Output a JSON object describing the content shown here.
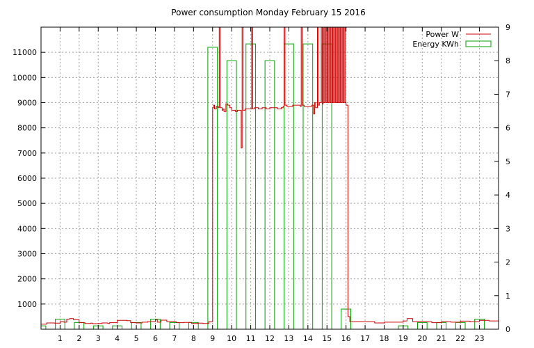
{
  "chart_data": {
    "type": "line",
    "title": "Power consumption Monday February 15 2016",
    "xlabel": "",
    "ylabel": "",
    "y2label": "",
    "xlim": [
      0,
      24
    ],
    "ylim": [
      0,
      12000
    ],
    "y2lim": [
      0,
      9
    ],
    "grid": true,
    "legend_position": "top-right",
    "x_ticks": [
      1,
      2,
      3,
      4,
      5,
      6,
      7,
      8,
      9,
      10,
      11,
      12,
      13,
      14,
      15,
      16,
      17,
      18,
      19,
      20,
      21,
      22,
      23
    ],
    "y_ticks": [
      1000,
      2000,
      3000,
      4000,
      5000,
      6000,
      7000,
      8000,
      9000,
      10000,
      11000
    ],
    "y2_ticks": [
      0,
      1,
      2,
      3,
      4,
      5,
      6,
      7,
      8,
      9
    ],
    "series": [
      {
        "name": "Power W",
        "color": "#cc0000",
        "x": [
          0,
          0.3,
          0.7,
          1.0,
          1.2,
          1.35,
          1.5,
          1.7,
          2.0,
          2.3,
          2.6,
          2.7,
          3.0,
          3.2,
          3.5,
          3.6,
          4.0,
          4.5,
          4.7,
          5.0,
          5.3,
          5.6,
          6.0,
          6.1,
          6.3,
          6.6,
          7.0,
          7.1,
          7.5,
          7.9,
          8.2,
          8.5,
          8.8,
          9.0,
          9.05,
          9.1,
          9.2,
          9.3,
          9.35,
          9.4,
          9.5,
          9.55,
          9.6,
          9.7,
          9.8,
          9.9,
          10.0,
          10.2,
          10.3,
          10.4,
          10.5,
          10.55,
          10.6,
          10.7,
          10.8,
          11.0,
          11.05,
          11.1,
          11.2,
          11.4,
          11.6,
          11.8,
          12.0,
          12.2,
          12.4,
          12.6,
          12.7,
          12.75,
          12.8,
          12.9,
          13.0,
          13.2,
          13.4,
          13.6,
          13.65,
          13.7,
          13.8,
          14.0,
          14.2,
          14.3,
          14.35,
          14.4,
          14.5,
          14.55,
          14.6,
          14.7,
          14.75,
          14.8,
          14.85,
          14.9,
          14.95,
          15.0,
          15.05,
          15.1,
          15.15,
          15.2,
          15.25,
          15.3,
          15.35,
          15.4,
          15.45,
          15.5,
          15.55,
          15.6,
          15.65,
          15.7,
          15.75,
          15.8,
          15.85,
          15.9,
          15.95,
          16.0,
          16.1,
          16.2,
          16.5,
          17.0,
          17.5,
          18.0,
          18.5,
          19.0,
          19.2,
          19.5,
          20.0,
          20.5,
          21.0,
          21.5,
          22.0,
          22.5,
          23.0,
          23.5,
          24.0
        ],
        "y": [
          200,
          250,
          240,
          300,
          280,
          400,
          420,
          380,
          260,
          230,
          240,
          220,
          230,
          250,
          230,
          260,
          350,
          340,
          260,
          250,
          280,
          300,
          380,
          280,
          360,
          300,
          290,
          260,
          270,
          230,
          240,
          230,
          300,
          8800,
          8900,
          8750,
          8850,
          8800,
          12000,
          8800,
          8700,
          8750,
          8650,
          8950,
          8900,
          8800,
          8700,
          8650,
          8700,
          8700,
          7200,
          12000,
          8700,
          8750,
          8750,
          8750,
          12000,
          8750,
          8800,
          8750,
          8800,
          8750,
          8800,
          8800,
          8750,
          8800,
          8850,
          12000,
          8900,
          8850,
          8850,
          8900,
          8900,
          8850,
          12000,
          8900,
          8850,
          8850,
          8900,
          8550,
          9000,
          8800,
          12000,
          8900,
          9000,
          12000,
          8950,
          12000,
          9000,
          12000,
          9000,
          12000,
          9000,
          12000,
          9000,
          12000,
          9000,
          12000,
          9000,
          12000,
          9000,
          12000,
          9000,
          12000,
          9000,
          12000,
          9000,
          12000,
          9000,
          12000,
          9000,
          8900,
          500,
          300,
          300,
          300,
          250,
          280,
          280,
          330,
          420,
          300,
          300,
          260,
          300,
          280,
          320,
          300,
          350,
          330,
          330
        ]
      },
      {
        "name": "Energy KWh",
        "color": "#00a000",
        "bins": [
          [
            0,
            0.25,
            0.1
          ],
          [
            0.75,
            1.25,
            0.3
          ],
          [
            1.75,
            2.25,
            0.2
          ],
          [
            2.75,
            3.25,
            0.1
          ],
          [
            3.75,
            4.25,
            0.1
          ],
          [
            4.75,
            5.25,
            0.2
          ],
          [
            5.75,
            6.25,
            0.3
          ],
          [
            6.75,
            7.25,
            0.2
          ],
          [
            7.75,
            8.25,
            0.2
          ],
          [
            8.75,
            9.25,
            8.4
          ],
          [
            9.75,
            10.25,
            8.0
          ],
          [
            10.75,
            11.25,
            8.5
          ],
          [
            11.75,
            12.25,
            8.0
          ],
          [
            12.75,
            13.25,
            8.5
          ],
          [
            13.75,
            14.25,
            8.5
          ],
          [
            14.75,
            15.25,
            8.5
          ],
          [
            15.75,
            16.25,
            0.6
          ],
          [
            18.75,
            19.25,
            0.1
          ],
          [
            19.75,
            20.25,
            0.2
          ],
          [
            20.75,
            21.25,
            0.2
          ],
          [
            21.75,
            22.25,
            0.2
          ],
          [
            22.75,
            23.25,
            0.3
          ]
        ]
      }
    ]
  }
}
